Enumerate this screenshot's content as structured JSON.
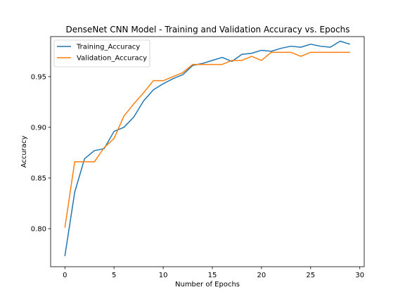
{
  "chart_data": {
    "type": "line",
    "title": "DenseNet CNN Model - Training and Validation Accuracy vs. Epochs",
    "xlabel": "Number of Epochs",
    "ylabel": "Accuracy",
    "xlim": [
      -1.45,
      30.45
    ],
    "ylim": [
      0.7625,
      0.9895
    ],
    "xticks": [
      0,
      5,
      10,
      15,
      20,
      25,
      30
    ],
    "xtick_labels": [
      "0",
      "5",
      "10",
      "15",
      "20",
      "25",
      "30"
    ],
    "yticks": [
      0.8,
      0.85,
      0.9,
      0.95
    ],
    "ytick_labels": [
      "0.80",
      "0.85",
      "0.90",
      "0.95"
    ],
    "grid": false,
    "legend_position": "upper-left",
    "x": [
      0,
      1,
      2,
      3,
      4,
      5,
      6,
      7,
      8,
      9,
      10,
      11,
      12,
      13,
      14,
      15,
      16,
      17,
      18,
      19,
      20,
      21,
      22,
      23,
      24,
      25,
      26,
      27,
      28,
      29
    ],
    "series": [
      {
        "name": "Training_Accuracy",
        "color": "#1f77b4",
        "values": [
          0.773,
          0.836,
          0.869,
          0.877,
          0.879,
          0.896,
          0.9,
          0.91,
          0.926,
          0.937,
          0.943,
          0.948,
          0.952,
          0.961,
          0.963,
          0.966,
          0.969,
          0.965,
          0.972,
          0.973,
          0.976,
          0.975,
          0.978,
          0.98,
          0.979,
          0.982,
          0.98,
          0.979,
          0.985,
          0.982
        ]
      },
      {
        "name": "Validation_Accuracy",
        "color": "#ff7f0e",
        "values": [
          0.801,
          0.866,
          0.866,
          0.866,
          0.88,
          0.889,
          0.911,
          0.923,
          0.934,
          0.946,
          0.946,
          0.95,
          0.954,
          0.962,
          0.962,
          0.962,
          0.962,
          0.966,
          0.966,
          0.97,
          0.966,
          0.974,
          0.974,
          0.974,
          0.97,
          0.974,
          0.974,
          0.974,
          0.974,
          0.974
        ]
      }
    ]
  }
}
